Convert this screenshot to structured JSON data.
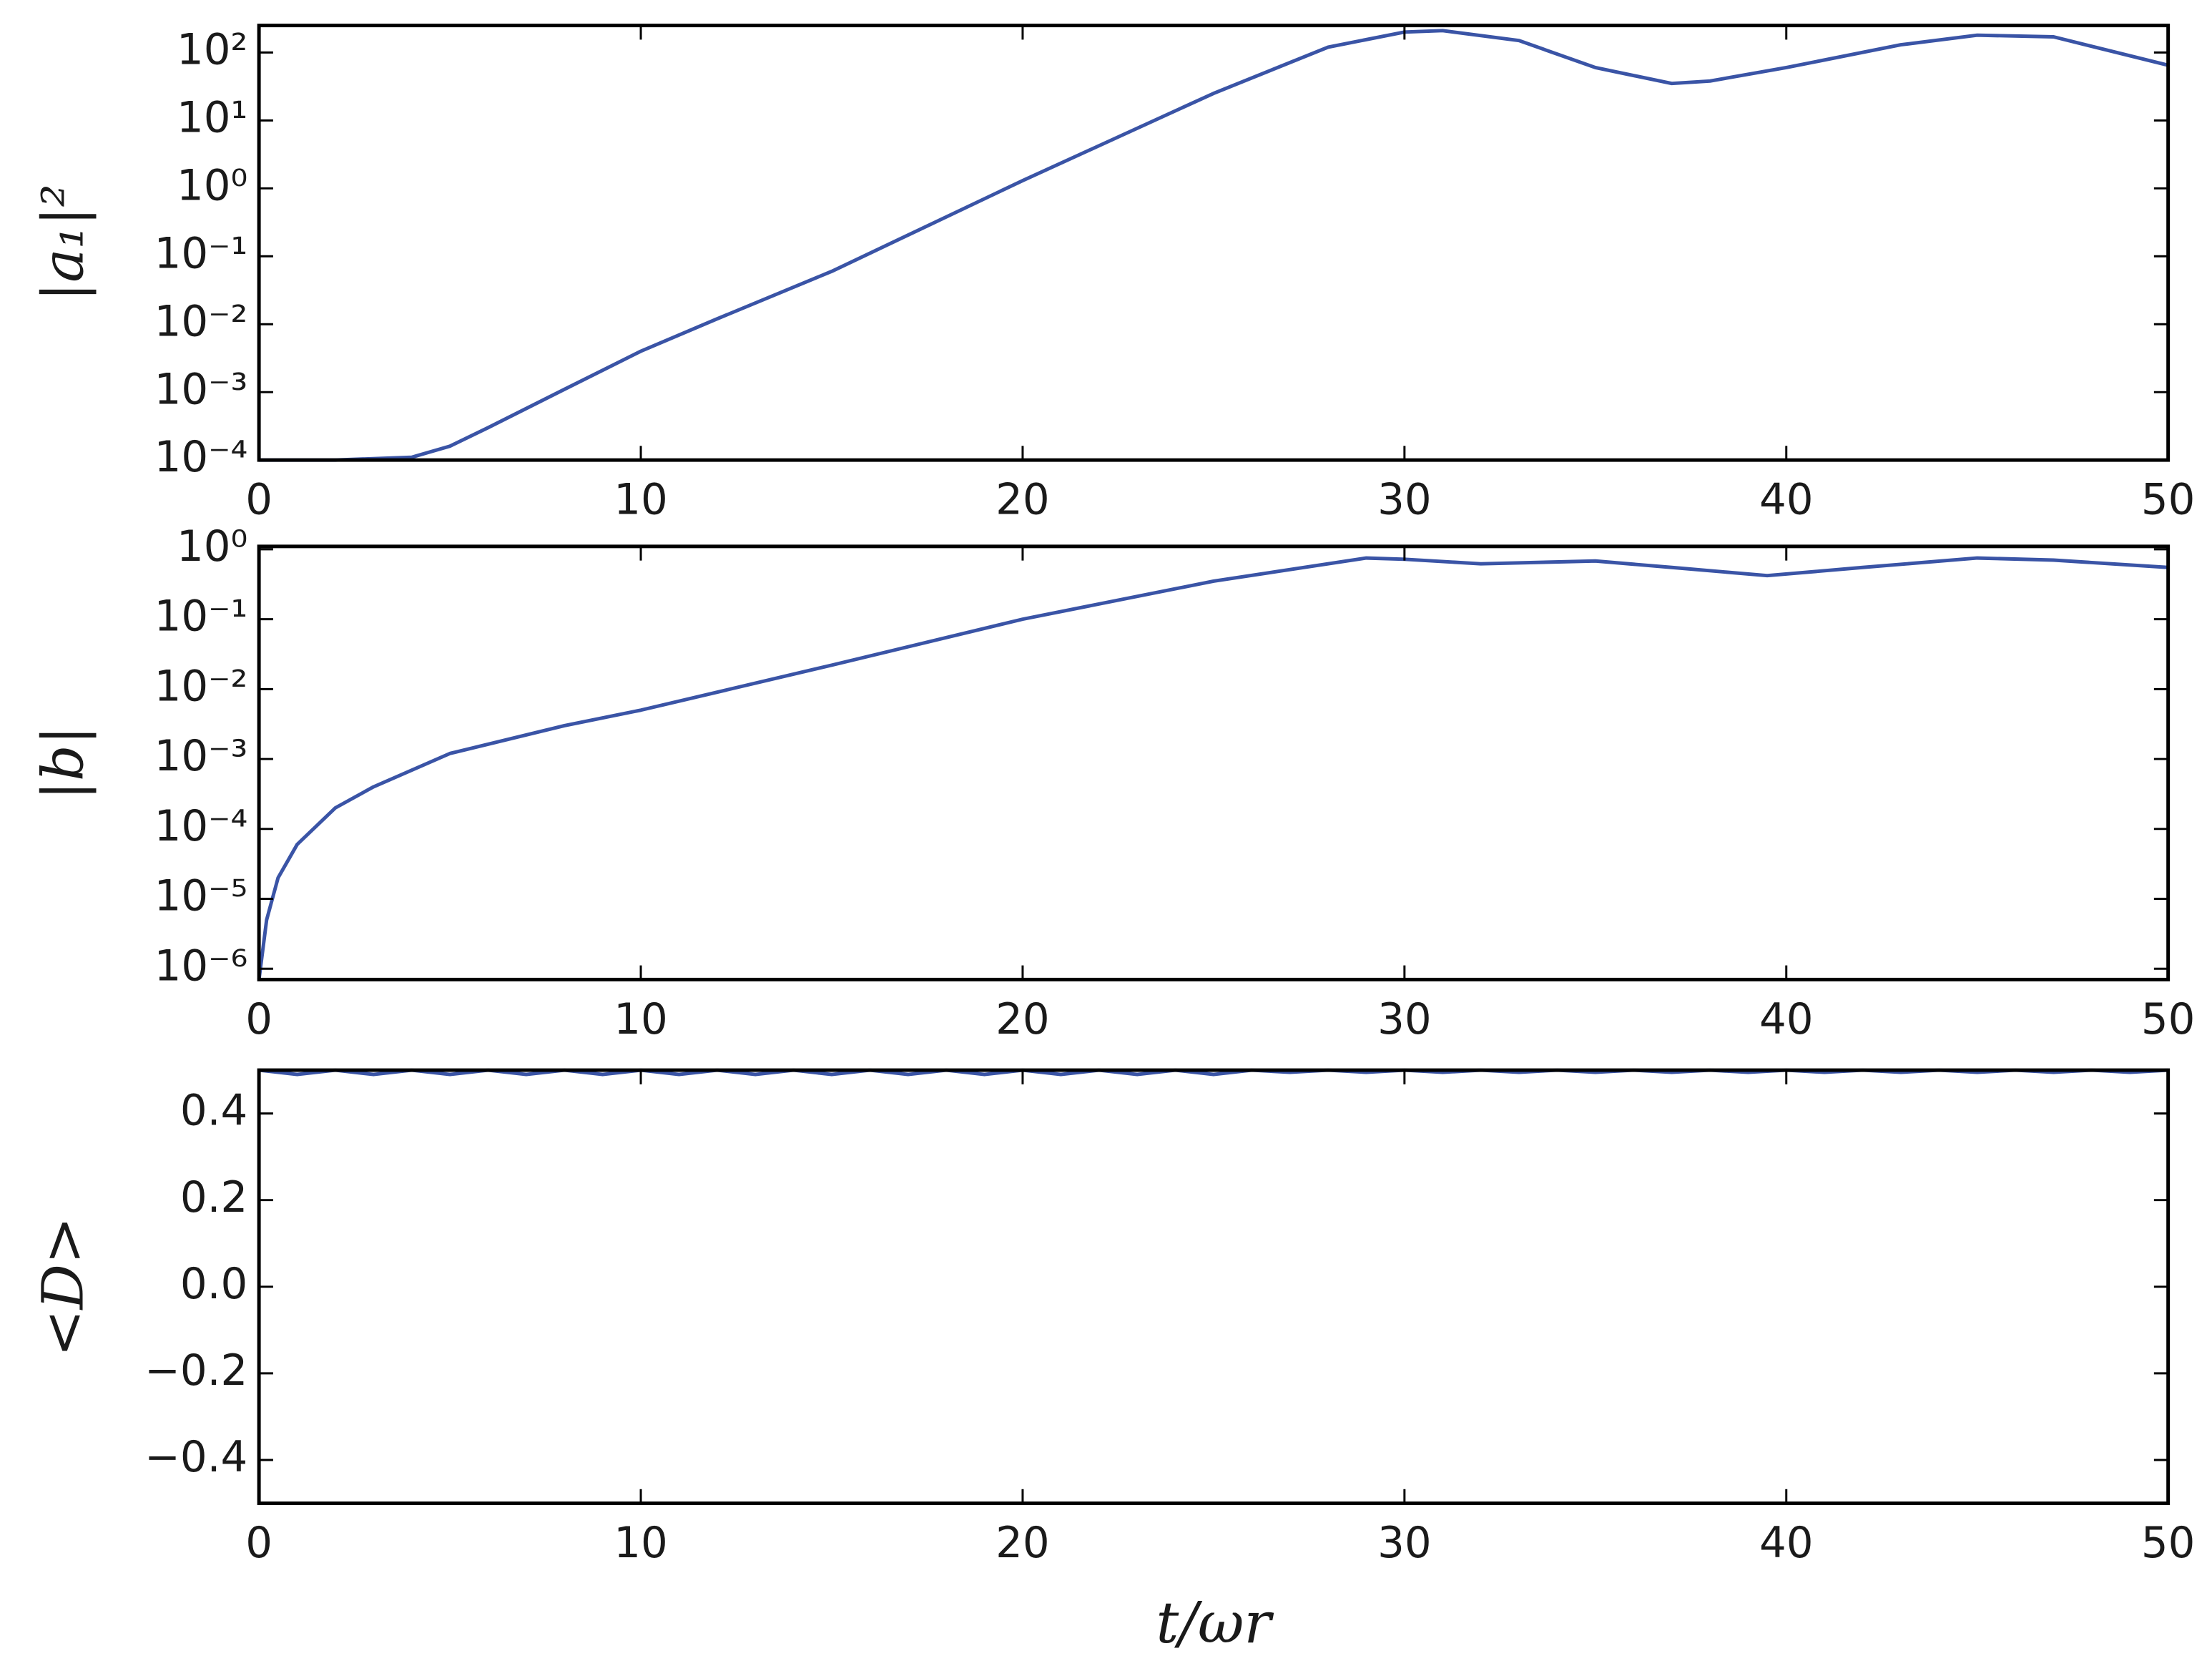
{
  "chart_data": [
    {
      "type": "line",
      "ylabel": "|a₁|²",
      "ylog": true,
      "x": [
        0,
        2,
        4,
        5,
        6,
        8,
        10,
        12,
        15,
        20,
        25,
        28,
        30,
        31,
        33,
        35,
        37,
        38,
        40,
        43,
        45,
        47,
        50
      ],
      "series": [
        {
          "color": "#3a54a6",
          "values": [
            0.0001,
            0.0001,
            0.00011,
            0.00016,
            0.0003,
            0.0011,
            0.004,
            0.012,
            0.06,
            1.3,
            25,
            120,
            200,
            210,
            150,
            60,
            35,
            38,
            60,
            130,
            180,
            170,
            65
          ]
        }
      ],
      "xlim": [
        0,
        50
      ],
      "xticks": [
        0,
        10,
        20,
        30,
        40,
        50
      ],
      "ylim": [
        0.0001,
        250
      ],
      "yticks": [
        {
          "value": 0.0001,
          "label": "10⁻⁴"
        },
        {
          "value": 0.001,
          "label": "10⁻³"
        },
        {
          "value": 0.01,
          "label": "10⁻²"
        },
        {
          "value": 0.1,
          "label": "10⁻¹"
        },
        {
          "value": 1,
          "label": "10⁰"
        },
        {
          "value": 10,
          "label": "10¹"
        },
        {
          "value": 100,
          "label": "10²"
        }
      ]
    },
    {
      "type": "line",
      "ylabel": "|b|",
      "ylog": true,
      "x": [
        0,
        0.2,
        0.5,
        1,
        2,
        3,
        5,
        8,
        10,
        15,
        20,
        25,
        29,
        30,
        32,
        35,
        37,
        39.5,
        42,
        45,
        47,
        50
      ],
      "series": [
        {
          "color": "#3a54a6",
          "values": [
            7e-07,
            5e-06,
            2e-05,
            6e-05,
            0.0002,
            0.0004,
            0.0012,
            0.003,
            0.005,
            0.022,
            0.1,
            0.35,
            0.75,
            0.72,
            0.62,
            0.68,
            0.55,
            0.42,
            0.55,
            0.75,
            0.7,
            0.55
          ]
        }
      ],
      "xlim": [
        0,
        50
      ],
      "xticks": [
        0,
        10,
        20,
        30,
        40,
        50
      ],
      "ylim": [
        7e-07,
        1.1
      ],
      "yticks": [
        {
          "value": 1e-06,
          "label": "10⁻⁶"
        },
        {
          "value": 1e-05,
          "label": "10⁻⁵"
        },
        {
          "value": 0.0001,
          "label": "10⁻⁴"
        },
        {
          "value": 0.001,
          "label": "10⁻³"
        },
        {
          "value": 0.01,
          "label": "10⁻²"
        },
        {
          "value": 0.1,
          "label": "10⁻¹"
        },
        {
          "value": 1,
          "label": "10⁰"
        }
      ]
    },
    {
      "type": "line",
      "ylabel": "<D>",
      "xlabel": "t/ωr",
      "ylog": false,
      "x": [
        0,
        1,
        2,
        3,
        4,
        5,
        6,
        7,
        8,
        9,
        10,
        11,
        12,
        13,
        14,
        15,
        16,
        17,
        18,
        19,
        20,
        21,
        22,
        23,
        24,
        25,
        26,
        27,
        28,
        29,
        30,
        31,
        32,
        33,
        34,
        35,
        36,
        37,
        38,
        39,
        40,
        41,
        42,
        43,
        44,
        45,
        46,
        47,
        48,
        49,
        50
      ],
      "series": [
        {
          "color": "#3a54a6",
          "values": [
            0.5,
            0.49,
            0.5,
            0.49,
            0.5,
            0.49,
            0.5,
            0.49,
            0.5,
            0.49,
            0.5,
            0.49,
            0.5,
            0.49,
            0.5,
            0.49,
            0.5,
            0.49,
            0.5,
            0.49,
            0.5,
            0.49,
            0.5,
            0.49,
            0.5,
            0.49,
            0.5,
            0.495,
            0.5,
            0.495,
            0.5,
            0.495,
            0.5,
            0.495,
            0.5,
            0.495,
            0.5,
            0.495,
            0.5,
            0.495,
            0.5,
            0.495,
            0.5,
            0.495,
            0.5,
            0.495,
            0.5,
            0.495,
            0.5,
            0.495,
            0.5
          ]
        }
      ],
      "xlim": [
        0,
        50
      ],
      "xticks": [
        0,
        10,
        20,
        30,
        40,
        50
      ],
      "ylim": [
        -0.5,
        0.5
      ],
      "yticks": [
        {
          "value": -0.4,
          "label": "−0.4"
        },
        {
          "value": -0.2,
          "label": "−0.2"
        },
        {
          "value": 0,
          "label": "0.0"
        },
        0.2,
        0.4
      ]
    }
  ]
}
